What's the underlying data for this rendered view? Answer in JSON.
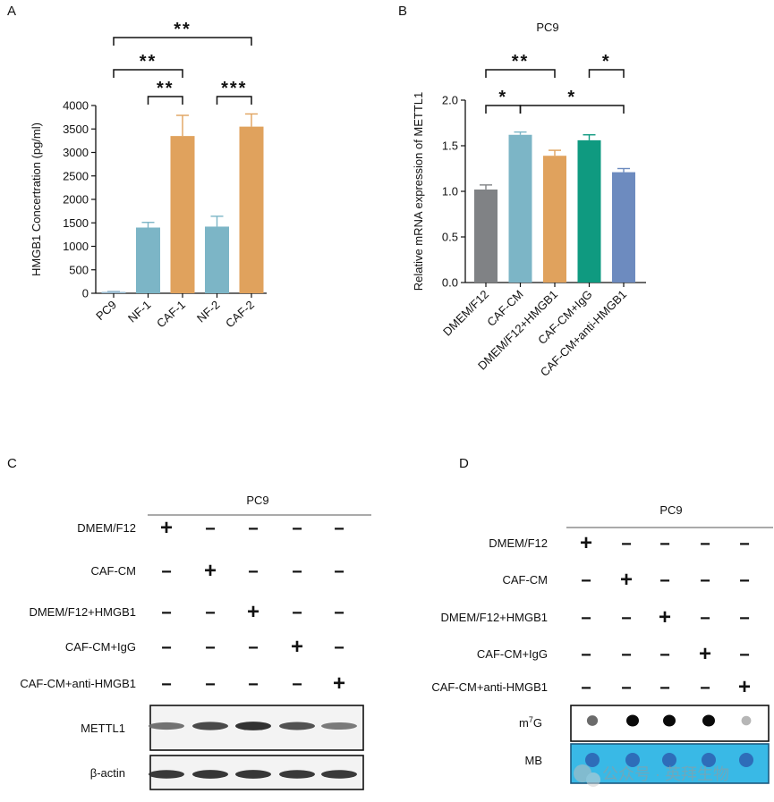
{
  "panels": {
    "A": "A",
    "B": "B",
    "C": "C",
    "D": "D"
  },
  "colors": {
    "blue": "#7cb5c6",
    "orange": "#e0a25d",
    "gray": "#808285",
    "teal": "#0f9a80",
    "slate": "#6d8bbf",
    "pc9": "#9bbcd0"
  },
  "chart_data": [
    {
      "panel": "A",
      "type": "bar",
      "title": "",
      "ylabel": "HMGB1 Concertration (pg/ml)",
      "xlabel": "",
      "categories": [
        "PC9",
        "NF-1",
        "CAF-1",
        "NF-2",
        "CAF-2"
      ],
      "values": [
        30,
        1400,
        3350,
        1420,
        3550
      ],
      "errors": [
        10,
        110,
        440,
        220,
        270
      ],
      "bar_colors": [
        "#9bbcd0",
        "#7cb5c6",
        "#e0a25d",
        "#7cb5c6",
        "#e0a25d"
      ],
      "ylim": [
        0,
        4000
      ],
      "yticks": [
        0,
        500,
        1000,
        1500,
        2000,
        2500,
        3000,
        3500,
        4000
      ],
      "significance": [
        {
          "from": 0,
          "to": 4,
          "label": "**"
        },
        {
          "from": 0,
          "to": 2,
          "label": "**"
        },
        {
          "from": 1,
          "to": 2,
          "label": "**"
        },
        {
          "from": 3,
          "to": 4,
          "label": "***"
        }
      ]
    },
    {
      "panel": "B",
      "type": "bar",
      "title": "PC9",
      "ylabel": "Relative mRNA expression of METTL1",
      "xlabel": "",
      "categories": [
        "DMEM/F12",
        "CAF-CM",
        "DMEM/F12+HMGB1",
        "CAF-CM+IgG",
        "CAF-CM+anti-HMGB1"
      ],
      "values": [
        1.02,
        1.62,
        1.39,
        1.56,
        1.21
      ],
      "errors": [
        0.05,
        0.03,
        0.06,
        0.06,
        0.04
      ],
      "bar_colors": [
        "#808285",
        "#7cb5c6",
        "#e0a25d",
        "#0f9a80",
        "#6d8bbf"
      ],
      "ylim": [
        0,
        2.0
      ],
      "yticks": [
        "0.0",
        "0.5",
        "1.0",
        "1.5",
        "2.0"
      ],
      "significance": [
        {
          "from": 0,
          "to": 2,
          "label": "**"
        },
        {
          "from": 0,
          "to": 1,
          "label": "*"
        },
        {
          "from": 1,
          "to": 4,
          "label": "*"
        },
        {
          "from": 3,
          "to": 4,
          "label": "*"
        }
      ]
    }
  ],
  "panelC": {
    "header": "PC9",
    "conditions": [
      "DMEM/F12",
      "CAF-CM",
      "DMEM/F12+HMGB1",
      "CAF-CM+IgG",
      "CAF-CM+anti-HMGB1"
    ],
    "signs": [
      [
        "+",
        "−",
        "−",
        "−",
        "−"
      ],
      [
        "−",
        "+",
        "−",
        "−",
        "−"
      ],
      [
        "−",
        "−",
        "+",
        "−",
        "−"
      ],
      [
        "−",
        "−",
        "−",
        "+",
        "−"
      ],
      [
        "−",
        "−",
        "−",
        "−",
        "+"
      ]
    ],
    "blots": [
      {
        "label": "METTL1",
        "intensities": [
          0.55,
          0.8,
          0.95,
          0.75,
          0.5
        ]
      },
      {
        "label": "β-actin",
        "intensities": [
          0.9,
          0.92,
          0.92,
          0.9,
          0.9
        ]
      }
    ]
  },
  "panelD": {
    "header": "PC9",
    "conditions": [
      "DMEM/F12",
      "CAF-CM",
      "DMEM/F12+HMGB1",
      "CAF-CM+IgG",
      "CAF-CM+anti-HMGB1"
    ],
    "signs": [
      [
        "+",
        "−",
        "−",
        "−",
        "−"
      ],
      [
        "−",
        "+",
        "−",
        "−",
        "−"
      ],
      [
        "−",
        "−",
        "+",
        "−",
        "−"
      ],
      [
        "−",
        "−",
        "−",
        "+",
        "−"
      ],
      [
        "−",
        "−",
        "−",
        "−",
        "+"
      ]
    ],
    "dots": [
      {
        "label_main": "m",
        "label_sup": "7",
        "label_tail": "G",
        "intensities": [
          0.55,
          1.0,
          1.0,
          1.0,
          0.2
        ]
      },
      {
        "label": "MB"
      }
    ],
    "watermark": "公众号 · 英拜生物"
  }
}
